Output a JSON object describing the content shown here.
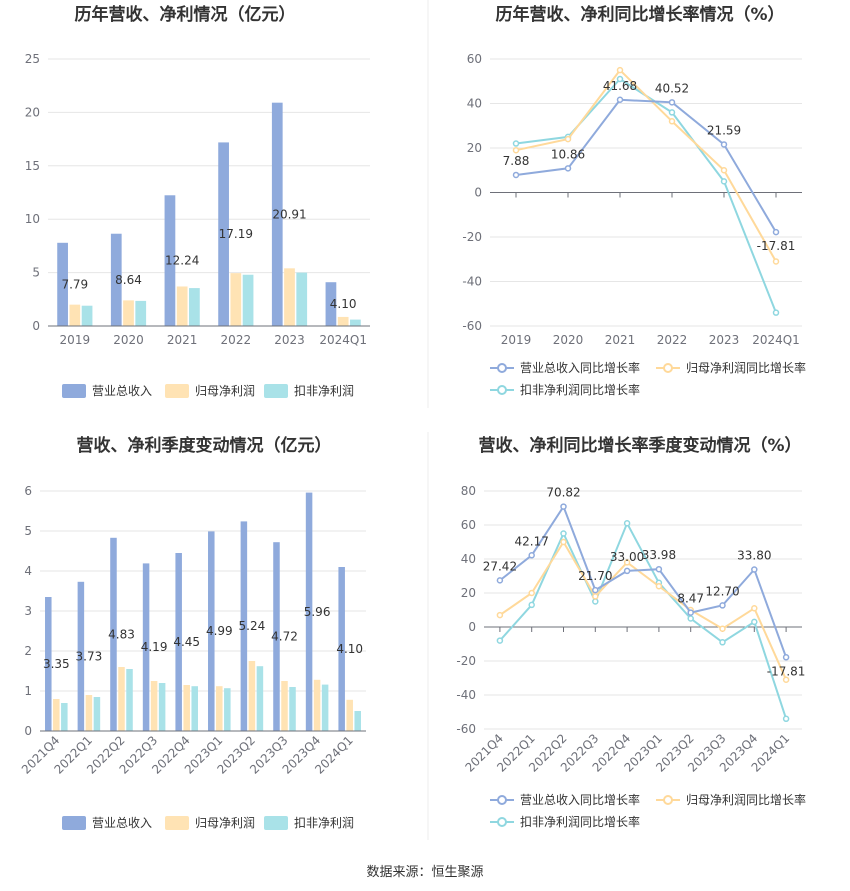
{
  "source_text": "数据来源：恒生聚源",
  "colors": {
    "revenue": "#8faadc",
    "parent_profit": "#ffe3b4",
    "deducted_profit": "#a9e2e8",
    "revenue_line": "#8faadc",
    "parent_line": "#ffd99a",
    "deducted_line": "#8fd7e0"
  },
  "chart_data": [
    {
      "type": "bar",
      "title": "历年营收、净利情况（亿元）",
      "categories": [
        "2019",
        "2020",
        "2021",
        "2022",
        "2023",
        "2024Q1"
      ],
      "series": [
        {
          "name": "营业总收入",
          "values": [
            7.79,
            8.64,
            12.24,
            17.19,
            20.91,
            4.1
          ],
          "labels": [
            "7.79",
            "8.64",
            "12.24",
            "17.19",
            "20.91",
            "4.10"
          ]
        },
        {
          "name": "归母净利润",
          "values": [
            2.0,
            2.4,
            3.7,
            4.95,
            5.4,
            0.85
          ]
        },
        {
          "name": "扣非净利润",
          "values": [
            1.9,
            2.35,
            3.55,
            4.8,
            5.0,
            0.6
          ]
        }
      ],
      "ylim": [
        0,
        25
      ],
      "yticks": [
        "0",
        "5",
        "10",
        "15",
        "20",
        "25"
      ],
      "legend_position": "bottom"
    },
    {
      "type": "line",
      "title": "历年营收、净利同比增长率情况（%）",
      "categories": [
        "2019",
        "2020",
        "2021",
        "2022",
        "2023",
        "2024Q1"
      ],
      "series": [
        {
          "name": "营业总收入同比增长率",
          "values": [
            7.88,
            10.86,
            41.68,
            40.52,
            21.59,
            -17.81
          ],
          "labels": [
            "7.88",
            "10.86",
            "41.68",
            "40.52",
            "21.59",
            "-17.81"
          ]
        },
        {
          "name": "归母净利润同比增长率",
          "values": [
            19,
            24,
            55,
            32,
            10,
            -31
          ]
        },
        {
          "name": "扣非净利润同比增长率",
          "values": [
            22,
            25,
            51,
            36,
            5,
            -54
          ]
        }
      ],
      "ylim": [
        -60,
        60
      ],
      "yticks": [
        "60",
        "40",
        "20",
        "0",
        "-20",
        "-40",
        "-60"
      ],
      "legend_position": "bottom"
    },
    {
      "type": "bar",
      "title": "营收、净利季度变动情况（亿元）",
      "categories": [
        "2021Q4",
        "2022Q1",
        "2022Q2",
        "2022Q3",
        "2022Q4",
        "2023Q1",
        "2023Q2",
        "2023Q3",
        "2023Q4",
        "2024Q1"
      ],
      "series": [
        {
          "name": "营业总收入",
          "values": [
            3.35,
            3.73,
            4.83,
            4.19,
            4.45,
            4.99,
            5.24,
            4.72,
            5.96,
            4.1
          ],
          "labels": [
            "3.35",
            "3.73",
            "4.83",
            "4.19",
            "4.45",
            "4.99",
            "5.24",
            "4.72",
            "5.96",
            "4.10"
          ]
        },
        {
          "name": "归母净利润",
          "values": [
            0.8,
            0.9,
            1.6,
            1.25,
            1.15,
            1.12,
            1.75,
            1.25,
            1.28,
            0.78
          ]
        },
        {
          "name": "扣非净利润",
          "values": [
            0.7,
            0.85,
            1.55,
            1.2,
            1.12,
            1.07,
            1.62,
            1.1,
            1.16,
            0.5
          ]
        }
      ],
      "ylim": [
        0,
        6
      ],
      "yticks": [
        "0",
        "1",
        "2",
        "3",
        "4",
        "5",
        "6"
      ],
      "legend_position": "bottom"
    },
    {
      "type": "line",
      "title": "营收、净利同比增长率季度变动情况（%）",
      "categories": [
        "2021Q4",
        "2022Q1",
        "2022Q2",
        "2022Q3",
        "2022Q4",
        "2023Q1",
        "2023Q2",
        "2023Q3",
        "2023Q4",
        "2024Q1"
      ],
      "series": [
        {
          "name": "营业总收入同比增长率",
          "values": [
            27.42,
            42.17,
            70.82,
            21.7,
            33.0,
            33.98,
            8.47,
            12.7,
            33.8,
            -17.81
          ],
          "labels": [
            "27.42",
            "42.17",
            "70.82",
            "21.70",
            "33.00",
            "33.98",
            "8.47",
            "12.70",
            "33.80",
            "-17.81"
          ]
        },
        {
          "name": "归母净利润同比增长率",
          "values": [
            7,
            20,
            50,
            18,
            38,
            24,
            10,
            -1,
            11,
            -31
          ]
        },
        {
          "name": "扣非净利润同比增长率",
          "values": [
            -8,
            13,
            55,
            15,
            61,
            26,
            5,
            -9,
            3,
            -54
          ]
        }
      ],
      "ylim": [
        -60,
        80
      ],
      "yticks": [
        "80",
        "60",
        "40",
        "20",
        "0",
        "-20",
        "-40",
        "-60"
      ],
      "legend_position": "bottom"
    }
  ]
}
